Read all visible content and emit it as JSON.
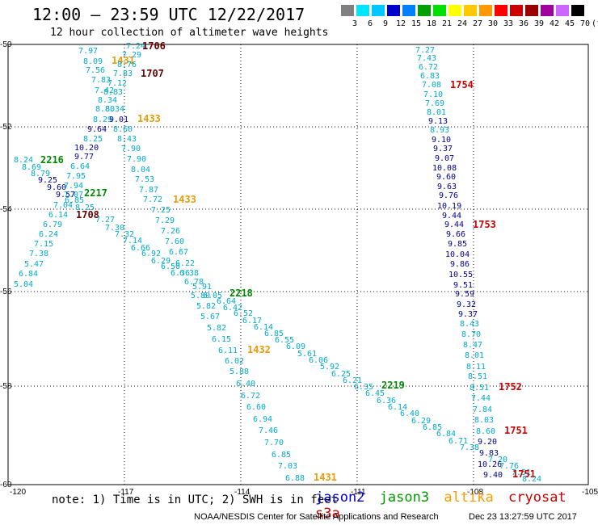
{
  "header": {
    "title": "12:00 – 23:59 UTC 12/22/2017",
    "subtitle": "12 hour collection of altimeter wave heights"
  },
  "colorbar": {
    "colors": [
      "#808080",
      "#00e5ff",
      "#00c8ff",
      "#0000cc",
      "#0080ff",
      "#00a000",
      "#00e000",
      "#ffff00",
      "#ffc800",
      "#ff9900",
      "#ff0000",
      "#cc0000",
      "#990000",
      "#a000a0",
      "#cc66ff",
      "#000000"
    ],
    "labels": [
      "3",
      "6",
      "9",
      "12",
      "15",
      "18",
      "21",
      "24",
      "27",
      "30",
      "33",
      "36",
      "39",
      "42",
      "45",
      "70",
      "(ft)"
    ]
  },
  "axes": {
    "x_ticks": [
      "-120",
      "-117",
      "-114",
      "-111",
      "-108",
      "-105"
    ],
    "y_ticks": [
      "-50",
      "-52",
      "-54",
      "-56",
      "-58",
      "-60"
    ]
  },
  "labels": [
    {
      "t": "7.97",
      "x": 97,
      "y": 66,
      "c": "#0ac"
    },
    {
      "t": "7.24",
      "x": 156,
      "y": 60,
      "c": "#0ac"
    },
    {
      "t": "1706",
      "x": 176,
      "y": 61,
      "c": "#600"
    },
    {
      "t": "8.09",
      "x": 103,
      "y": 79,
      "c": "#0ac"
    },
    {
      "t": "1431",
      "x": 138,
      "y": 79,
      "c": "#e90"
    },
    {
      "t": "7.29",
      "x": 151,
      "y": 71,
      "c": "#0ac"
    },
    {
      "t": "8.76",
      "x": 145,
      "y": 83,
      "c": "#0ac"
    },
    {
      "t": "7.56",
      "x": 106,
      "y": 90,
      "c": "#0ac"
    },
    {
      "t": "7.83",
      "x": 140,
      "y": 94,
      "c": "#0ac"
    },
    {
      "t": "1707",
      "x": 174,
      "y": 95,
      "c": "#600"
    },
    {
      "t": "7.83",
      "x": 113,
      "y": 102,
      "c": "#0ac"
    },
    {
      "t": "7.12",
      "x": 133,
      "y": 106,
      "c": "#0ac"
    },
    {
      "t": "7.42",
      "x": 117,
      "y": 115,
      "c": "#0ac"
    },
    {
      "t": "8.83",
      "x": 128,
      "y": 117,
      "c": "#0ac"
    },
    {
      "t": "8.34",
      "x": 121,
      "y": 127,
      "c": "#0ac"
    },
    {
      "t": "8.80",
      "x": 118,
      "y": 138,
      "c": "#0ac"
    },
    {
      "t": "8.34",
      "x": 130,
      "y": 138,
      "c": "#0ac"
    },
    {
      "t": "8.29",
      "x": 115,
      "y": 151,
      "c": "#0ac"
    },
    {
      "t": "9.01",
      "x": 135,
      "y": 151,
      "c": "#008"
    },
    {
      "t": "1433",
      "x": 170,
      "y": 151,
      "c": "#e90"
    },
    {
      "t": "9.64",
      "x": 108,
      "y": 163,
      "c": "#008"
    },
    {
      "t": "8.60",
      "x": 140,
      "y": 163,
      "c": "#0ac"
    },
    {
      "t": "8.25",
      "x": 103,
      "y": 175,
      "c": "#0ac"
    },
    {
      "t": "8.43",
      "x": 145,
      "y": 175,
      "c": "#0ac"
    },
    {
      "t": "10.20",
      "x": 92,
      "y": 186,
      "c": "#008"
    },
    {
      "t": "7.90",
      "x": 150,
      "y": 187,
      "c": "#0ac"
    },
    {
      "t": "8.24",
      "x": 17,
      "y": 201,
      "c": "#0ac"
    },
    {
      "t": "2216",
      "x": 50,
      "y": 202,
      "c": "#080"
    },
    {
      "t": "9.77",
      "x": 92,
      "y": 197,
      "c": "#008"
    },
    {
      "t": "7.90",
      "x": 157,
      "y": 200,
      "c": "#0ac"
    },
    {
      "t": "8.69",
      "x": 27,
      "y": 210,
      "c": "#0ac"
    },
    {
      "t": "6.64",
      "x": 87,
      "y": 209,
      "c": "#0ac"
    },
    {
      "t": "8.04",
      "x": 162,
      "y": 213,
      "c": "#0ac"
    },
    {
      "t": "8.79",
      "x": 38,
      "y": 218,
      "c": "#0ac"
    },
    {
      "t": "7.95",
      "x": 82,
      "y": 221,
      "c": "#0ac"
    },
    {
      "t": "9.25",
      "x": 47,
      "y": 226,
      "c": "#008"
    },
    {
      "t": "7.53",
      "x": 167,
      "y": 225,
      "c": "#0ac"
    },
    {
      "t": "9.60",
      "x": 58,
      "y": 235,
      "c": "#008"
    },
    {
      "t": "7.94",
      "x": 79,
      "y": 233,
      "c": "#0ac"
    },
    {
      "t": "7.87",
      "x": 172,
      "y": 238,
      "c": "#0ac"
    },
    {
      "t": "9.57",
      "x": 69,
      "y": 244,
      "c": "#008"
    },
    {
      "t": "7.07",
      "x": 79,
      "y": 244,
      "c": "#0ac"
    },
    {
      "t": "2217",
      "x": 104,
      "y": 243,
      "c": "#080"
    },
    {
      "t": "6.85",
      "x": 80,
      "y": 251,
      "c": "#0ac"
    },
    {
      "t": "7.72",
      "x": 177,
      "y": 250,
      "c": "#0ac"
    },
    {
      "t": "1433",
      "x": 214,
      "y": 251,
      "c": "#e90"
    },
    {
      "t": "7.04",
      "x": 66,
      "y": 257,
      "c": "#0ac"
    },
    {
      "t": "8.25",
      "x": 93,
      "y": 260,
      "c": "#0ac"
    },
    {
      "t": "7.25",
      "x": 187,
      "y": 263,
      "c": "#0ac"
    },
    {
      "t": "6.14",
      "x": 60,
      "y": 269,
      "c": "#0ac"
    },
    {
      "t": "1708",
      "x": 94,
      "y": 270,
      "c": "#600"
    },
    {
      "t": "7.27",
      "x": 118,
      "y": 275,
      "c": "#0ac"
    },
    {
      "t": "7.29",
      "x": 192,
      "y": 276,
      "c": "#0ac"
    },
    {
      "t": "6.79",
      "x": 53,
      "y": 281,
      "c": "#0ac"
    },
    {
      "t": "7.30",
      "x": 130,
      "y": 285,
      "c": "#0ac"
    },
    {
      "t": "7.26",
      "x": 199,
      "y": 289,
      "c": "#0ac"
    },
    {
      "t": "6.24",
      "x": 48,
      "y": 293,
      "c": "#0ac"
    },
    {
      "t": "7.32",
      "x": 142,
      "y": 293,
      "c": "#0ac"
    },
    {
      "t": "7.14",
      "x": 152,
      "y": 301,
      "c": "#0ac"
    },
    {
      "t": "7.60",
      "x": 204,
      "y": 302,
      "c": "#0ac"
    },
    {
      "t": "7.15",
      "x": 42,
      "y": 305,
      "c": "#0ac"
    },
    {
      "t": "6.66",
      "x": 162,
      "y": 310,
      "c": "#0ac"
    },
    {
      "t": "6.67",
      "x": 209,
      "y": 315,
      "c": "#0ac"
    },
    {
      "t": "7.38",
      "x": 36,
      "y": 317,
      "c": "#0ac"
    },
    {
      "t": "6.92",
      "x": 175,
      "y": 317,
      "c": "#0ac"
    },
    {
      "t": "6.29",
      "x": 187,
      "y": 326,
      "c": "#0ac"
    },
    {
      "t": "6.22",
      "x": 217,
      "y": 329,
      "c": "#0ac"
    },
    {
      "t": "5.47",
      "x": 30,
      "y": 330,
      "c": "#0ac"
    },
    {
      "t": "6.50",
      "x": 199,
      "y": 333,
      "c": "#0ac"
    },
    {
      "t": "6.36",
      "x": 211,
      "y": 341,
      "c": "#0ac"
    },
    {
      "t": "6.38",
      "x": 222,
      "y": 341,
      "c": "#0ac"
    },
    {
      "t": "6.84",
      "x": 23,
      "y": 342,
      "c": "#0ac"
    },
    {
      "t": "6.78",
      "x": 228,
      "y": 352,
      "c": "#0ac"
    },
    {
      "t": "5.04",
      "x": 17,
      "y": 355,
      "c": "#0ac"
    },
    {
      "t": "5.91",
      "x": 238,
      "y": 358,
      "c": "#0ac"
    },
    {
      "t": "5.80",
      "x": 236,
      "y": 369,
      "c": "#0ac"
    },
    {
      "t": "6.05",
      "x": 251,
      "y": 369,
      "c": "#0ac"
    },
    {
      "t": "2218",
      "x": 284,
      "y": 367,
      "c": "#080"
    },
    {
      "t": "6.64",
      "x": 268,
      "y": 376,
      "c": "#0ac"
    },
    {
      "t": "5.82",
      "x": 243,
      "y": 382,
      "c": "#0ac"
    },
    {
      "t": "6.42",
      "x": 276,
      "y": 384,
      "c": "#0ac"
    },
    {
      "t": "6.52",
      "x": 289,
      "y": 391,
      "c": "#0ac"
    },
    {
      "t": "5.67",
      "x": 248,
      "y": 395,
      "c": "#0ac"
    },
    {
      "t": "6.17",
      "x": 300,
      "y": 400,
      "c": "#0ac"
    },
    {
      "t": "5.82",
      "x": 256,
      "y": 409,
      "c": "#0ac"
    },
    {
      "t": "6.14",
      "x": 314,
      "y": 408,
      "c": "#0ac"
    },
    {
      "t": "6.85",
      "x": 327,
      "y": 416,
      "c": "#0ac"
    },
    {
      "t": "6.15",
      "x": 262,
      "y": 423,
      "c": "#0ac"
    },
    {
      "t": "6.55",
      "x": 340,
      "y": 424,
      "c": "#0ac"
    },
    {
      "t": "6.09",
      "x": 354,
      "y": 432,
      "c": "#0ac"
    },
    {
      "t": "6.11",
      "x": 270,
      "y": 437,
      "c": "#0ac"
    },
    {
      "t": "1432",
      "x": 306,
      "y": 437,
      "c": "#e90"
    },
    {
      "t": "5.61",
      "x": 368,
      "y": 441,
      "c": "#0ac"
    },
    {
      "t": "6.02",
      "x": 278,
      "y": 450,
      "c": "#0ac"
    },
    {
      "t": "6.06",
      "x": 382,
      "y": 449,
      "c": "#0ac"
    },
    {
      "t": "5.92",
      "x": 396,
      "y": 457,
      "c": "#0ac"
    },
    {
      "t": "5.88",
      "x": 284,
      "y": 463,
      "c": "#0ac"
    },
    {
      "t": "6.25",
      "x": 410,
      "y": 466,
      "c": "#0ac"
    },
    {
      "t": "6.21",
      "x": 424,
      "y": 474,
      "c": "#0ac"
    },
    {
      "t": "6.40",
      "x": 292,
      "y": 478,
      "c": "#0ac"
    },
    {
      "t": "6.35",
      "x": 438,
      "y": 482,
      "c": "#0ac"
    },
    {
      "t": "2219",
      "x": 472,
      "y": 481,
      "c": "#080"
    },
    {
      "t": "6.45",
      "x": 452,
      "y": 490,
      "c": "#0ac"
    },
    {
      "t": "6.72",
      "x": 298,
      "y": 493,
      "c": "#0ac"
    },
    {
      "t": "6.36",
      "x": 466,
      "y": 499,
      "c": "#0ac"
    },
    {
      "t": "6.14",
      "x": 480,
      "y": 507,
      "c": "#0ac"
    },
    {
      "t": "6.60",
      "x": 305,
      "y": 507,
      "c": "#0ac"
    },
    {
      "t": "6.40",
      "x": 495,
      "y": 515,
      "c": "#0ac"
    },
    {
      "t": "6.29",
      "x": 509,
      "y": 524,
      "c": "#0ac"
    },
    {
      "t": "6.94",
      "x": 313,
      "y": 522,
      "c": "#0ac"
    },
    {
      "t": "6.85",
      "x": 523,
      "y": 532,
      "c": "#0ac"
    },
    {
      "t": "7.46",
      "x": 320,
      "y": 536,
      "c": "#0ac"
    },
    {
      "t": "6.84",
      "x": 540,
      "y": 540,
      "c": "#0ac"
    },
    {
      "t": "6.71",
      "x": 555,
      "y": 549,
      "c": "#0ac"
    },
    {
      "t": "7.70",
      "x": 327,
      "y": 551,
      "c": "#0ac"
    },
    {
      "t": "7.38",
      "x": 569,
      "y": 557,
      "c": "#0ac"
    },
    {
      "t": "6.85",
      "x": 336,
      "y": 566,
      "c": "#0ac"
    },
    {
      "t": "7.03",
      "x": 344,
      "y": 580,
      "c": "#0ac"
    },
    {
      "t": "6.88",
      "x": 353,
      "y": 595,
      "c": "#0ac"
    },
    {
      "t": "1431",
      "x": 388,
      "y": 595,
      "c": "#e90"
    },
    {
      "t": "7.27",
      "x": 514,
      "y": 65,
      "c": "#0ac"
    },
    {
      "t": "7.43",
      "x": 516,
      "y": 75,
      "c": "#0ac"
    },
    {
      "t": "6.72",
      "x": 518,
      "y": 86,
      "c": "#0ac"
    },
    {
      "t": "6.83",
      "x": 520,
      "y": 97,
      "c": "#0ac"
    },
    {
      "t": "7.08",
      "x": 522,
      "y": 108,
      "c": "#0ac"
    },
    {
      "t": "1754",
      "x": 557,
      "y": 109,
      "c": "#c00"
    },
    {
      "t": "7.10",
      "x": 524,
      "y": 120,
      "c": "#0ac"
    },
    {
      "t": "7.69",
      "x": 526,
      "y": 131,
      "c": "#0ac"
    },
    {
      "t": "8.01",
      "x": 528,
      "y": 142,
      "c": "#0ac"
    },
    {
      "t": "9.13",
      "x": 530,
      "y": 153,
      "c": "#008"
    },
    {
      "t": "8.93",
      "x": 532,
      "y": 164,
      "c": "#0ac"
    },
    {
      "t": "9.10",
      "x": 534,
      "y": 176,
      "c": "#008"
    },
    {
      "t": "9.37",
      "x": 536,
      "y": 187,
      "c": "#008"
    },
    {
      "t": "9.07",
      "x": 538,
      "y": 199,
      "c": "#008"
    },
    {
      "t": "10.08",
      "x": 535,
      "y": 211,
      "c": "#008"
    },
    {
      "t": "9.60",
      "x": 540,
      "y": 222,
      "c": "#008"
    },
    {
      "t": "9.63",
      "x": 541,
      "y": 234,
      "c": "#008"
    },
    {
      "t": "9.76",
      "x": 543,
      "y": 245,
      "c": "#008"
    },
    {
      "t": "10.19",
      "x": 541,
      "y": 258,
      "c": "#008"
    },
    {
      "t": "9.44",
      "x": 547,
      "y": 270,
      "c": "#008"
    },
    {
      "t": "9.44",
      "x": 550,
      "y": 281,
      "c": "#008"
    },
    {
      "t": "1753",
      "x": 585,
      "y": 282,
      "c": "#c00"
    },
    {
      "t": "9.66",
      "x": 552,
      "y": 293,
      "c": "#008"
    },
    {
      "t": "9.85",
      "x": 554,
      "y": 305,
      "c": "#008"
    },
    {
      "t": "10.04",
      "x": 551,
      "y": 318,
      "c": "#008"
    },
    {
      "t": "9.86",
      "x": 557,
      "y": 330,
      "c": "#008"
    },
    {
      "t": "10.55",
      "x": 555,
      "y": 343,
      "c": "#008"
    },
    {
      "t": "9.51",
      "x": 561,
      "y": 356,
      "c": "#008"
    },
    {
      "t": "9.59",
      "x": 563,
      "y": 367,
      "c": "#008"
    },
    {
      "t": "9.32",
      "x": 565,
      "y": 380,
      "c": "#008"
    },
    {
      "t": "9.37",
      "x": 567,
      "y": 392,
      "c": "#008"
    },
    {
      "t": "8.43",
      "x": 569,
      "y": 404,
      "c": "#0ac"
    },
    {
      "t": "8.70",
      "x": 571,
      "y": 417,
      "c": "#0ac"
    },
    {
      "t": "8.47",
      "x": 573,
      "y": 430,
      "c": "#0ac"
    },
    {
      "t": "8.01",
      "x": 575,
      "y": 443,
      "c": "#0ac"
    },
    {
      "t": "8.11",
      "x": 577,
      "y": 457,
      "c": "#0ac"
    },
    {
      "t": "8.51",
      "x": 579,
      "y": 469,
      "c": "#0ac"
    },
    {
      "t": "8.51",
      "x": 581,
      "y": 483,
      "c": "#0ac"
    },
    {
      "t": "1752",
      "x": 617,
      "y": 483,
      "c": "#c00"
    },
    {
      "t": "7.44",
      "x": 583,
      "y": 496,
      "c": "#0ac"
    },
    {
      "t": "7.84",
      "x": 585,
      "y": 510,
      "c": "#0ac"
    },
    {
      "t": "8.03",
      "x": 587,
      "y": 523,
      "c": "#0ac"
    },
    {
      "t": "8.60",
      "x": 589,
      "y": 537,
      "c": "#0ac"
    },
    {
      "t": "1751",
      "x": 624,
      "y": 537,
      "c": "#c00"
    },
    {
      "t": "9.20",
      "x": 591,
      "y": 550,
      "c": "#008"
    },
    {
      "t": "9.83",
      "x": 593,
      "y": 564,
      "c": "#008"
    },
    {
      "t": "7.20",
      "x": 604,
      "y": 572,
      "c": "#0ac"
    },
    {
      "t": "10.26",
      "x": 591,
      "y": 578,
      "c": "#008"
    },
    {
      "t": "7.76",
      "x": 618,
      "y": 580,
      "c": "#0ac"
    },
    {
      "t": "9.40",
      "x": 598,
      "y": 591,
      "c": "#008"
    },
    {
      "t": "7.51",
      "x": 633,
      "y": 588,
      "c": "#0ac"
    },
    {
      "t": "1751",
      "x": 634,
      "y": 591,
      "c": "#c00"
    },
    {
      "t": "8.24",
      "x": 646,
      "y": 596,
      "c": "#0ac"
    }
  ],
  "notes": {
    "note": "note: 1) Time is in UTC; 2) SWH is in feet",
    "legend": [
      {
        "name": "jason2",
        "color": "#0000cc"
      },
      {
        "name": "jason3",
        "color": "#009900"
      },
      {
        "name": "altika",
        "color": "#ff9900"
      },
      {
        "name": "cryosat s3a",
        "color": "#cc0000"
      }
    ],
    "credit": "NOAA/NESDIS Center for Satellite Applications and Research",
    "stamp": "Dec 23 13:27:59 UTC 2017"
  }
}
